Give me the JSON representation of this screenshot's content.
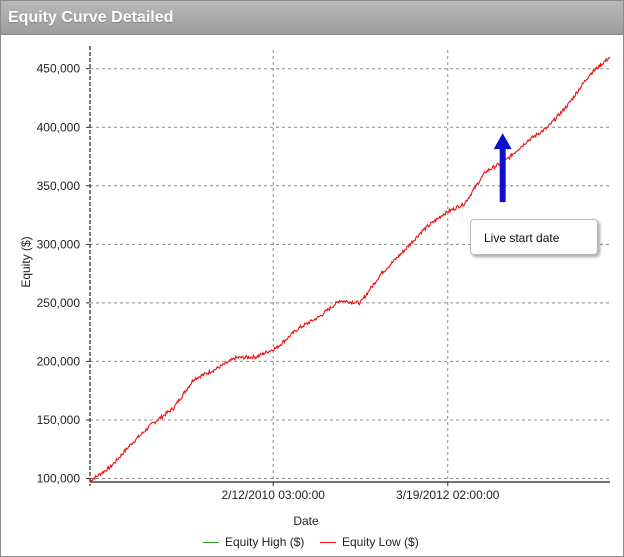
{
  "window": {
    "title": "Equity Curve Detailed"
  },
  "colors": {
    "equity_high": "#2e9d2e",
    "equity_low": "#ee1111",
    "arrow": "#1010cc",
    "grid": "#8c8c8c"
  },
  "chart_data": {
    "type": "line",
    "xlabel": "Date",
    "ylabel": "Equity ($)",
    "ylim": [
      97000,
      466000
    ],
    "yticks": [
      100000,
      150000,
      200000,
      250000,
      300000,
      350000,
      400000,
      450000
    ],
    "ytick_labels": [
      "100,000",
      "150,000",
      "200,000",
      "250,000",
      "300,000",
      "350,000",
      "400,000",
      "450,000"
    ],
    "xlim": [
      "2007-12-01",
      "2014-03-01"
    ],
    "xticks": [
      "2010-02-12",
      "2012-03-19"
    ],
    "xtick_labels": [
      "2/12/2010 03:00:00",
      "3/19/2012 02:00:00"
    ],
    "grid": true,
    "legend": "bottom",
    "series": [
      {
        "name": "Equity High ($)",
        "color": "#2e9d2e",
        "x": [],
        "y": []
      },
      {
        "name": "Equity Low ($)",
        "color": "#ee1111",
        "x": [
          "2007-12-01",
          "2008-03-01",
          "2008-06-01",
          "2008-09-01",
          "2008-12-01",
          "2009-03-01",
          "2009-06-01",
          "2009-09-01",
          "2009-12-01",
          "2010-03-01",
          "2010-06-01",
          "2010-09-01",
          "2010-12-01",
          "2011-03-01",
          "2011-06-01",
          "2011-09-01",
          "2011-12-01",
          "2012-03-01",
          "2012-06-01",
          "2012-09-01",
          "2012-12-01",
          "2013-03-01",
          "2013-06-01",
          "2013-09-01",
          "2013-12-01",
          "2014-03-01"
        ],
        "y": [
          98000,
          110000,
          130000,
          147000,
          160000,
          185000,
          193000,
          203000,
          204000,
          212000,
          228000,
          238000,
          252000,
          250000,
          275000,
          293000,
          312000,
          326000,
          335000,
          362000,
          372000,
          388000,
          400000,
          420000,
          445000,
          460000
        ]
      }
    ],
    "annotations": [
      {
        "text": "Live start date",
        "x": "2012-11-15",
        "y": 395000
      }
    ]
  }
}
